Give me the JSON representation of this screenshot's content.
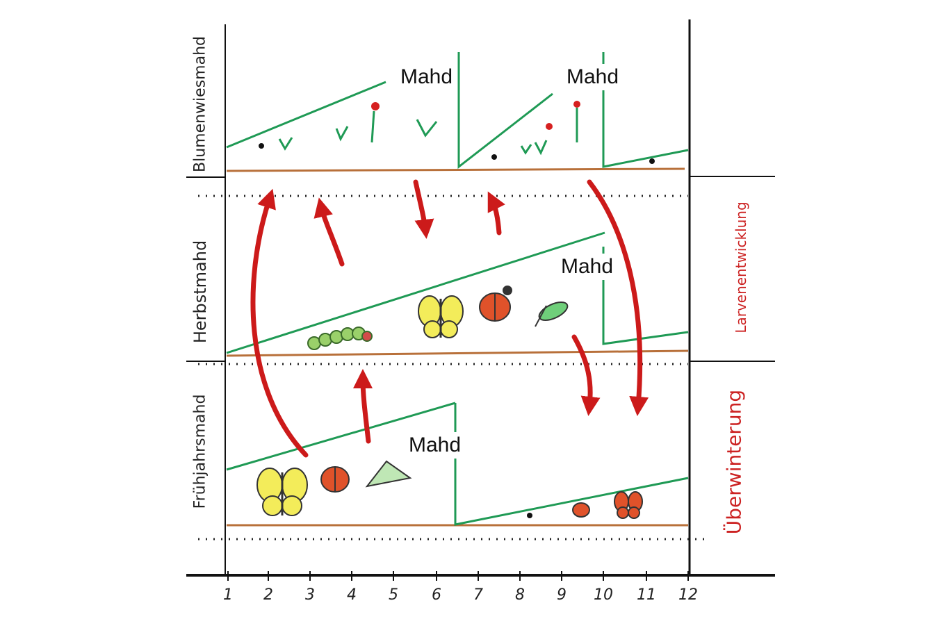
{
  "mahd_labels": [
    "Mahd",
    "Mahd",
    "Mahd",
    "Mahd"
  ],
  "row_labels": [
    "Blumenwiesmahd",
    "Herbstmahd",
    "Frühjahrsmahd"
  ],
  "stage_labels": [
    "Larvenentwicklung",
    "Überwinterung"
  ],
  "months": [
    "1",
    "2",
    "3",
    "4",
    "5",
    "6",
    "7",
    "8",
    "9",
    "10",
    "11",
    "12"
  ],
  "colors": {
    "grass": "#1f9a55",
    "ground": "#b8703a",
    "arrow": "#cc1a1a",
    "axis": "#111111",
    "stage_text": "#cc2222"
  },
  "icons": [
    "butterfly-icon",
    "ladybug-icon",
    "grasshopper-icon",
    "caterpillar-icon",
    "flower-icon",
    "seedling-icon"
  ]
}
